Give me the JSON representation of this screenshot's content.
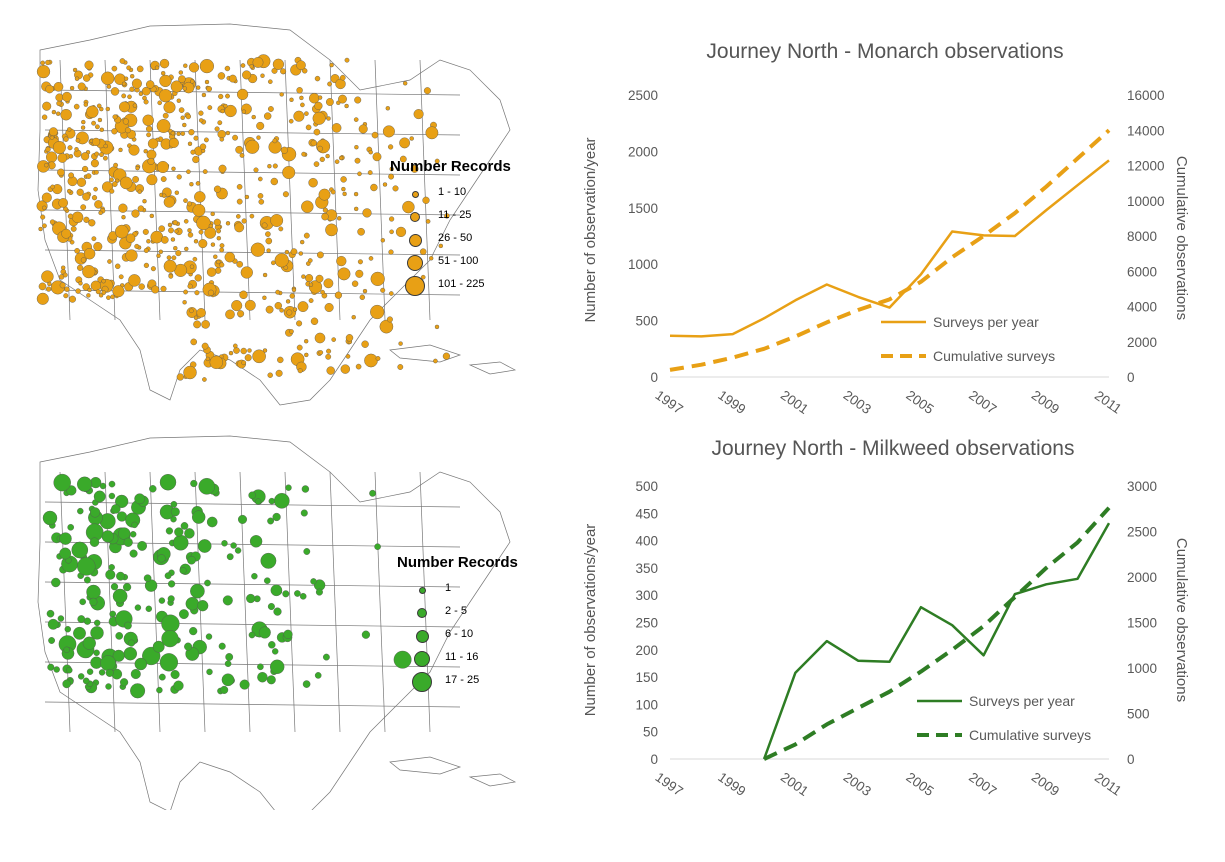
{
  "maps": [
    {
      "id": "monarch",
      "color": "#e8a015",
      "legend_title": "Number Records",
      "legend": [
        {
          "label": "1 - 10"
        },
        {
          "label": "11 - 25"
        },
        {
          "label": "26 - 50"
        },
        {
          "label": "51 - 100"
        },
        {
          "label": "101 - 225"
        }
      ]
    },
    {
      "id": "milkweed",
      "color": "#3aaa2a",
      "legend_title": "Number Records",
      "legend": [
        {
          "label": "1"
        },
        {
          "label": "2 - 5"
        },
        {
          "label": "6 - 10"
        },
        {
          "label": "11 - 16"
        },
        {
          "label": "17 - 25"
        }
      ]
    }
  ],
  "chart_data": [
    {
      "type": "line",
      "title": "Journey North - Monarch observations",
      "ylabel": "Number of observation/year",
      "y2label": "Cumulative observations",
      "color": "#e8a015",
      "x": [
        1997,
        1998,
        1999,
        2000,
        2001,
        2002,
        2003,
        2004,
        2005,
        2006,
        2007,
        2008,
        2009,
        2010,
        2011
      ],
      "xticks": [
        "1997",
        "1999",
        "2001",
        "2003",
        "2005",
        "2007",
        "2009",
        "2011"
      ],
      "ylim": [
        0,
        2500
      ],
      "yticks": [
        "0",
        "500",
        "1000",
        "1500",
        "2000",
        "2500"
      ],
      "y2lim": [
        0,
        16000
      ],
      "y2ticks": [
        "0",
        "2000",
        "4000",
        "6000",
        "8000",
        "10000",
        "12000",
        "14000",
        "16000"
      ],
      "legend_position": "lower-right",
      "series": [
        {
          "name": "Surveys per year",
          "axis": "left",
          "style": "solid",
          "values": [
            365,
            360,
            380,
            520,
            680,
            820,
            710,
            615,
            910,
            1290,
            1255,
            1250,
            1480,
            1700,
            1920
          ]
        },
        {
          "name": "Cumulative surveys",
          "axis": "right",
          "style": "dashed",
          "values": [
            400,
            700,
            1100,
            1600,
            2300,
            3100,
            3800,
            4400,
            5400,
            6800,
            8000,
            9300,
            10800,
            12400,
            14000
          ]
        }
      ]
    },
    {
      "type": "line",
      "title": "Journey North - Milkweed observations",
      "ylabel": "Number of observations/year",
      "y2label": "Cumulative observations",
      "color": "#2e7d24",
      "x": [
        1997,
        1998,
        1999,
        2000,
        2001,
        2002,
        2003,
        2004,
        2005,
        2006,
        2007,
        2008,
        2009,
        2010,
        2011
      ],
      "xticks": [
        "1997",
        "1999",
        "2001",
        "2003",
        "2005",
        "2007",
        "2009",
        "2011"
      ],
      "ylim": [
        0,
        500
      ],
      "yticks": [
        "0",
        "50",
        "100",
        "150",
        "200",
        "250",
        "300",
        "350",
        "400",
        "450",
        "500"
      ],
      "y2lim": [
        0,
        3000
      ],
      "y2ticks": [
        "0",
        "500",
        "1000",
        "1500",
        "2000",
        "2500",
        "3000"
      ],
      "legend_position": "lower-right",
      "series": [
        {
          "name": "Surveys per year",
          "axis": "left",
          "style": "solid",
          "values": [
            null,
            null,
            null,
            0,
            158,
            216,
            180,
            178,
            278,
            245,
            190,
            302,
            320,
            330,
            432
          ]
        },
        {
          "name": "Cumulative surveys",
          "axis": "right",
          "style": "dashed",
          "values": [
            null,
            null,
            null,
            0,
            160,
            380,
            560,
            740,
            960,
            1200,
            1460,
            1780,
            2100,
            2380,
            2760
          ]
        }
      ]
    }
  ]
}
